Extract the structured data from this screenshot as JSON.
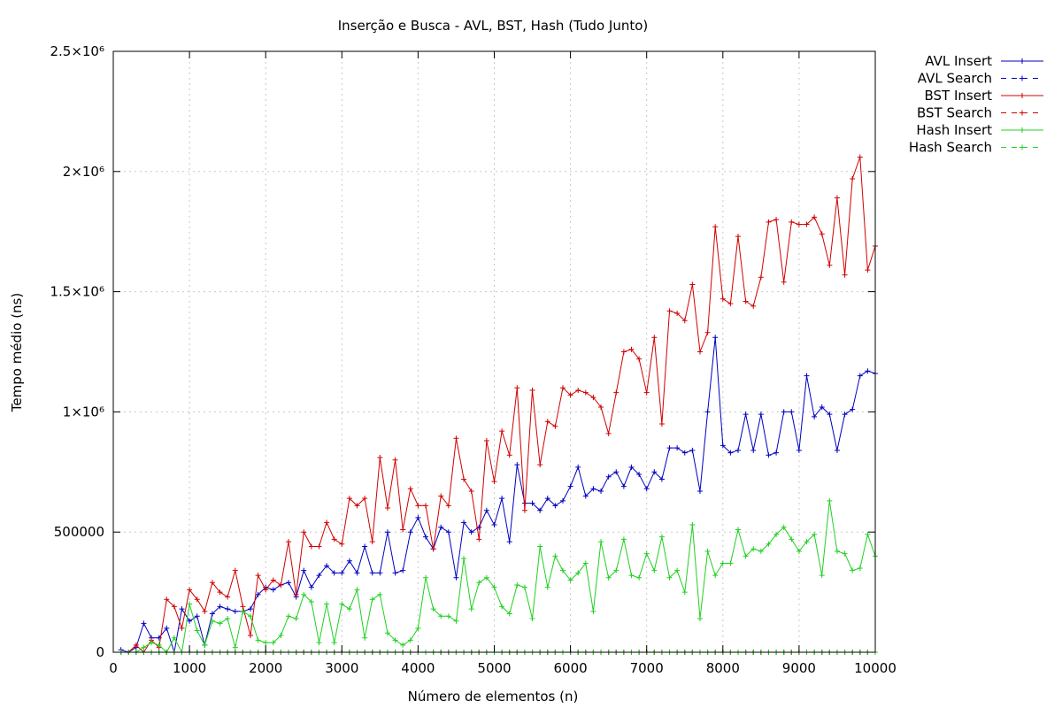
{
  "chart_data": {
    "type": "line",
    "title": "Inserção e Busca - AVL, BST, Hash (Tudo Junto)",
    "xlabel": "Número de elementos (n)",
    "ylabel": "Tempo médio (ns)",
    "xlim": [
      0,
      10000
    ],
    "ylim": [
      0,
      2500000
    ],
    "x_ticks": [
      0,
      1000,
      2000,
      3000,
      4000,
      5000,
      6000,
      7000,
      8000,
      9000,
      10000
    ],
    "x_tick_labels": [
      "0",
      "1000",
      "2000",
      "3000",
      "4000",
      "5000",
      "6000",
      "7000",
      "8000",
      "9000",
      "10000"
    ],
    "y_ticks": [
      0,
      500000,
      1000000,
      1500000,
      2000000,
      2500000
    ],
    "y_tick_labels": [
      "0",
      "500000",
      "1×10⁶",
      "1.5×10⁶",
      "2×10⁶",
      "2.5×10⁶"
    ],
    "grid": true,
    "legend_position": "outside-top-right",
    "x": [
      100,
      200,
      300,
      400,
      500,
      600,
      700,
      800,
      900,
      1000,
      1100,
      1200,
      1300,
      1400,
      1500,
      1600,
      1700,
      1800,
      1900,
      2000,
      2100,
      2200,
      2300,
      2400,
      2500,
      2600,
      2700,
      2800,
      2900,
      3000,
      3100,
      3200,
      3300,
      3400,
      3500,
      3600,
      3700,
      3800,
      3900,
      4000,
      4100,
      4200,
      4300,
      4400,
      4500,
      4600,
      4700,
      4800,
      4900,
      5000,
      5100,
      5200,
      5300,
      5400,
      5500,
      5600,
      5700,
      5800,
      5900,
      6000,
      6100,
      6200,
      6300,
      6400,
      6500,
      6600,
      6700,
      6800,
      6900,
      7000,
      7100,
      7200,
      7300,
      7400,
      7500,
      7600,
      7700,
      7800,
      7900,
      8000,
      8100,
      8200,
      8300,
      8400,
      8500,
      8600,
      8700,
      8800,
      8900,
      9000,
      9100,
      9200,
      9300,
      9400,
      9500,
      9600,
      9700,
      9800,
      9900,
      10000
    ],
    "series": [
      {
        "name": "AVL Insert",
        "color": "#0000c0",
        "dash": "solid",
        "values": [
          10000,
          0,
          20000,
          120000,
          60000,
          60000,
          100000,
          0,
          180000,
          130000,
          150000,
          30000,
          160000,
          190000,
          180000,
          170000,
          170000,
          180000,
          240000,
          270000,
          260000,
          280000,
          290000,
          230000,
          340000,
          270000,
          320000,
          360000,
          330000,
          330000,
          380000,
          330000,
          440000,
          330000,
          330000,
          500000,
          330000,
          340000,
          500000,
          560000,
          480000,
          430000,
          520000,
          500000,
          310000,
          540000,
          500000,
          520000,
          590000,
          530000,
          640000,
          460000,
          780000,
          620000,
          620000,
          590000,
          640000,
          610000,
          630000,
          690000,
          770000,
          650000,
          680000,
          670000,
          730000,
          750000,
          690000,
          770000,
          740000,
          680000,
          750000,
          720000,
          850000,
          850000,
          830000,
          840000,
          670000,
          1000000,
          1310000,
          860000,
          830000,
          840000,
          990000,
          840000,
          990000,
          820000,
          830000,
          1000000,
          1000000,
          840000,
          1150000,
          980000,
          1020000,
          990000,
          840000,
          990000,
          1010000,
          1150000,
          1170000,
          1160000
        ]
      },
      {
        "name": "AVL Search",
        "color": "#0000c0",
        "dash": "dashed",
        "values": [
          0,
          0,
          0,
          0,
          0,
          0,
          0,
          0,
          0,
          0,
          0,
          0,
          0,
          0,
          0,
          0,
          0,
          0,
          0,
          0,
          0,
          0,
          0,
          0,
          0,
          0,
          0,
          0,
          0,
          0,
          0,
          0,
          0,
          0,
          0,
          0,
          0,
          0,
          0,
          0,
          0,
          0,
          0,
          0,
          0,
          0,
          0,
          0,
          0,
          0,
          0,
          0,
          0,
          0,
          0,
          0,
          0,
          0,
          0,
          0,
          0,
          0,
          0,
          0,
          0,
          0,
          0,
          0,
          0,
          0,
          0,
          0,
          0,
          0,
          0,
          0,
          0,
          0,
          0,
          0,
          0,
          0,
          0,
          0,
          0,
          0,
          0,
          0,
          0,
          0,
          0,
          0,
          0,
          0,
          0,
          0,
          0,
          0,
          0,
          0
        ]
      },
      {
        "name": "BST Insert",
        "color": "#d00000",
        "dash": "solid",
        "values": [
          0,
          0,
          30000,
          0,
          50000,
          20000,
          220000,
          190000,
          100000,
          260000,
          220000,
          170000,
          290000,
          250000,
          230000,
          340000,
          190000,
          70000,
          320000,
          260000,
          300000,
          280000,
          460000,
          240000,
          500000,
          440000,
          440000,
          540000,
          470000,
          450000,
          640000,
          610000,
          640000,
          460000,
          810000,
          600000,
          800000,
          510000,
          680000,
          610000,
          610000,
          430000,
          650000,
          610000,
          890000,
          720000,
          670000,
          470000,
          880000,
          710000,
          920000,
          820000,
          1100000,
          590000,
          1090000,
          780000,
          960000,
          940000,
          1100000,
          1070000,
          1090000,
          1080000,
          1060000,
          1020000,
          910000,
          1080000,
          1250000,
          1260000,
          1220000,
          1080000,
          1310000,
          950000,
          1420000,
          1410000,
          1380000,
          1530000,
          1250000,
          1330000,
          1770000,
          1470000,
          1450000,
          1730000,
          1460000,
          1440000,
          1560000,
          1790000,
          1800000,
          1540000,
          1790000,
          1780000,
          1780000,
          1810000,
          1740000,
          1610000,
          1890000,
          1570000,
          1970000,
          2060000,
          1590000,
          1690000
        ]
      },
      {
        "name": "BST Search",
        "color": "#d00000",
        "dash": "dashed",
        "values": [
          0,
          0,
          0,
          0,
          0,
          0,
          0,
          0,
          0,
          0,
          0,
          0,
          0,
          0,
          0,
          0,
          0,
          0,
          0,
          0,
          0,
          0,
          0,
          0,
          0,
          0,
          0,
          0,
          0,
          0,
          0,
          0,
          0,
          0,
          0,
          0,
          0,
          0,
          0,
          0,
          0,
          0,
          0,
          0,
          0,
          0,
          0,
          0,
          0,
          0,
          0,
          0,
          0,
          0,
          0,
          0,
          0,
          0,
          0,
          0,
          0,
          0,
          0,
          0,
          0,
          0,
          0,
          0,
          0,
          0,
          0,
          0,
          0,
          0,
          0,
          0,
          0,
          0,
          0,
          0,
          0,
          0,
          0,
          0,
          0,
          0,
          0,
          0,
          0,
          0,
          0,
          0,
          0,
          0,
          0,
          0,
          0,
          0,
          0,
          0
        ]
      },
      {
        "name": "Hash Insert",
        "color": "#20d020",
        "dash": "solid",
        "values": [
          0,
          0,
          0,
          20000,
          40000,
          30000,
          0,
          60000,
          0,
          200000,
          90000,
          30000,
          130000,
          120000,
          140000,
          20000,
          170000,
          150000,
          50000,
          40000,
          40000,
          70000,
          150000,
          140000,
          240000,
          210000,
          40000,
          200000,
          40000,
          200000,
          180000,
          260000,
          60000,
          220000,
          240000,
          80000,
          50000,
          30000,
          50000,
          100000,
          310000,
          180000,
          150000,
          150000,
          130000,
          390000,
          180000,
          290000,
          310000,
          270000,
          190000,
          160000,
          280000,
          270000,
          140000,
          440000,
          270000,
          400000,
          340000,
          300000,
          330000,
          370000,
          170000,
          460000,
          310000,
          340000,
          470000,
          320000,
          310000,
          410000,
          340000,
          480000,
          310000,
          340000,
          250000,
          530000,
          140000,
          420000,
          320000,
          370000,
          370000,
          510000,
          400000,
          430000,
          420000,
          450000,
          490000,
          520000,
          470000,
          420000,
          460000,
          490000,
          320000,
          630000,
          420000,
          410000,
          340000,
          350000,
          490000,
          400000
        ]
      },
      {
        "name": "Hash Search",
        "color": "#20d020",
        "dash": "dashed",
        "values": [
          0,
          0,
          0,
          0,
          0,
          0,
          0,
          0,
          0,
          0,
          0,
          0,
          0,
          0,
          0,
          0,
          0,
          0,
          0,
          0,
          0,
          0,
          0,
          0,
          0,
          0,
          0,
          0,
          0,
          0,
          0,
          0,
          0,
          0,
          0,
          0,
          0,
          0,
          0,
          0,
          0,
          0,
          0,
          0,
          0,
          0,
          0,
          0,
          0,
          0,
          0,
          0,
          0,
          0,
          0,
          0,
          0,
          0,
          0,
          0,
          0,
          0,
          0,
          0,
          0,
          0,
          0,
          0,
          0,
          0,
          0,
          0,
          0,
          0,
          0,
          0,
          0,
          0,
          0,
          0,
          0,
          0,
          0,
          0,
          0,
          0,
          0,
          0,
          0,
          0,
          0,
          0,
          0,
          0,
          0,
          0,
          0,
          0,
          0,
          0
        ]
      }
    ]
  }
}
